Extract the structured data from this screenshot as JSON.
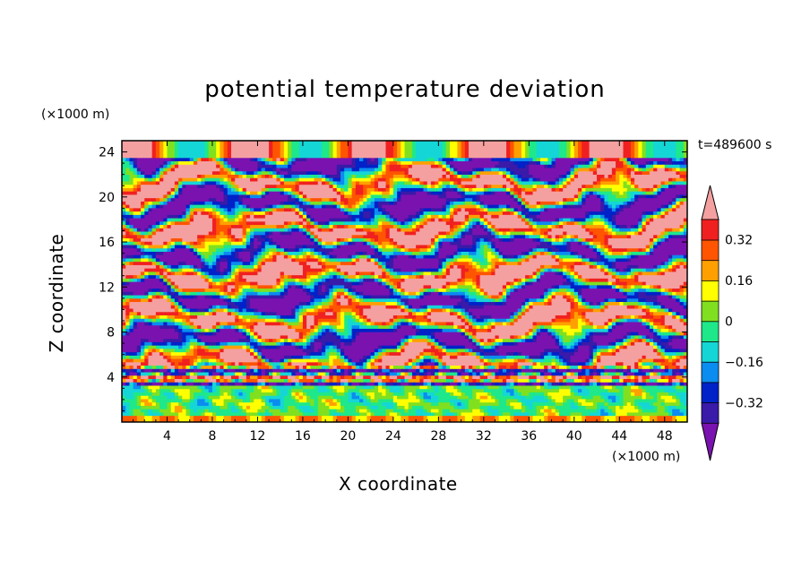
{
  "chart_data": {
    "type": "heatmap",
    "title": "potential temperature deviation",
    "xlabel": "X coordinate",
    "ylabel": "Z coordinate",
    "x_unit_label": "(×1000 m)",
    "y_unit_label": "(×1000 m)",
    "time_label": "t=489600 s",
    "xlim": [
      0,
      50
    ],
    "ylim": [
      0,
      25
    ],
    "x_ticks": [
      4,
      8,
      12,
      16,
      20,
      24,
      28,
      32,
      36,
      40,
      44,
      48
    ],
    "y_ticks": [
      4,
      8,
      12,
      16,
      20,
      24
    ],
    "colorbar": {
      "levels": [
        -0.4,
        -0.32,
        -0.24,
        -0.16,
        -0.08,
        0,
        0.08,
        0.16,
        0.24,
        0.32,
        0.4
      ],
      "tick_values": [
        0.32,
        0.16,
        0,
        -0.16,
        -0.32
      ],
      "tick_labels": [
        "0.32",
        "0.16",
        "0",
        "−0.16",
        "−0.32"
      ],
      "colors": [
        "#7a12b0",
        "#3a1aa8",
        "#0022c8",
        "#0a8cf0",
        "#15d6d6",
        "#1ee88a",
        "#80e020",
        "#ffff00",
        "#ffa000",
        "#ff5500",
        "#f02020",
        "#f5a0a0"
      ],
      "extend": "both"
    }
  }
}
